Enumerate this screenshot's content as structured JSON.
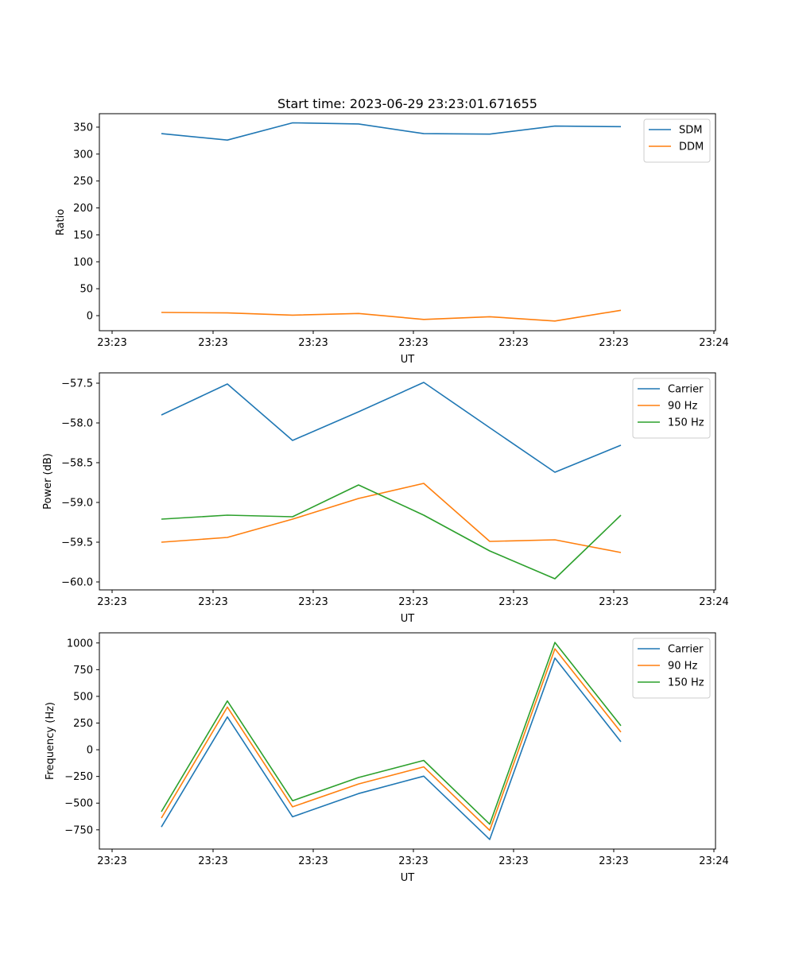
{
  "title": "Start time: 2023-06-29 23:23:01.671655",
  "chart_data": [
    {
      "type": "line",
      "xlabel": "UT",
      "ylabel": "Ratio",
      "x_tick_labels": [
        "23:23",
        "23:23",
        "23:23",
        "23:23",
        "23:23",
        "23:23",
        "23:24"
      ],
      "yticks": [
        0,
        50,
        100,
        150,
        200,
        250,
        300,
        350
      ],
      "ylim": [
        -28,
        375
      ],
      "legend_position": "top-right",
      "series": [
        {
          "name": "SDM",
          "color": "#1f77b4",
          "values": [
            338,
            326,
            358,
            356,
            338,
            337,
            352,
            351
          ]
        },
        {
          "name": "DDM",
          "color": "#ff7f0e",
          "values": [
            6,
            5,
            1,
            4,
            -7,
            -2,
            -10,
            10
          ]
        }
      ]
    },
    {
      "type": "line",
      "xlabel": "UT",
      "ylabel": "Power (dB)",
      "x_tick_labels": [
        "23:23",
        "23:23",
        "23:23",
        "23:23",
        "23:23",
        "23:23",
        "23:24"
      ],
      "yticks": [
        -60.0,
        -59.5,
        -59.0,
        -58.5,
        -58.0,
        -57.5
      ],
      "ytick_labels": [
        "−60.0",
        "−59.5",
        "−59.0",
        "−58.5",
        "−58.0",
        "−57.5"
      ],
      "ylim": [
        -60.1,
        -57.37
      ],
      "legend_position": "top-right",
      "series": [
        {
          "name": "Carrier",
          "color": "#1f77b4",
          "values": [
            -57.9,
            -57.51,
            -58.22,
            -57.86,
            -57.49,
            -58.06,
            -58.62,
            -58.28
          ]
        },
        {
          "name": "90 Hz",
          "color": "#ff7f0e",
          "values": [
            -59.5,
            -59.44,
            -59.21,
            -58.95,
            -58.76,
            -59.49,
            -59.47,
            -59.63
          ]
        },
        {
          "name": "150 Hz",
          "color": "#2ca02c",
          "values": [
            -59.21,
            -59.16,
            -59.18,
            -58.78,
            -59.16,
            -59.61,
            -59.96,
            -59.16
          ]
        }
      ]
    },
    {
      "type": "line",
      "xlabel": "UT",
      "ylabel": "Frequency (Hz)",
      "x_tick_labels": [
        "23:23",
        "23:23",
        "23:23",
        "23:23",
        "23:23",
        "23:23",
        "23:24"
      ],
      "yticks": [
        -750,
        -500,
        -250,
        0,
        250,
        500,
        750,
        1000
      ],
      "ytick_labels": [
        "−750",
        "−500",
        "−250",
        "0",
        "250",
        "500",
        "750",
        "1000"
      ],
      "ylim": [
        -930,
        1095
      ],
      "legend_position": "top-right",
      "series": [
        {
          "name": "Carrier",
          "color": "#1f77b4",
          "values": [
            -723,
            307,
            -628,
            -410,
            -247,
            -840,
            858,
            75
          ]
        },
        {
          "name": "90 Hz",
          "color": "#ff7f0e",
          "values": [
            -640,
            400,
            -535,
            -320,
            -160,
            -755,
            945,
            165
          ]
        },
        {
          "name": "150 Hz",
          "color": "#2ca02c",
          "values": [
            -580,
            457,
            -477,
            -260,
            -100,
            -697,
            1005,
            225
          ]
        }
      ]
    }
  ]
}
